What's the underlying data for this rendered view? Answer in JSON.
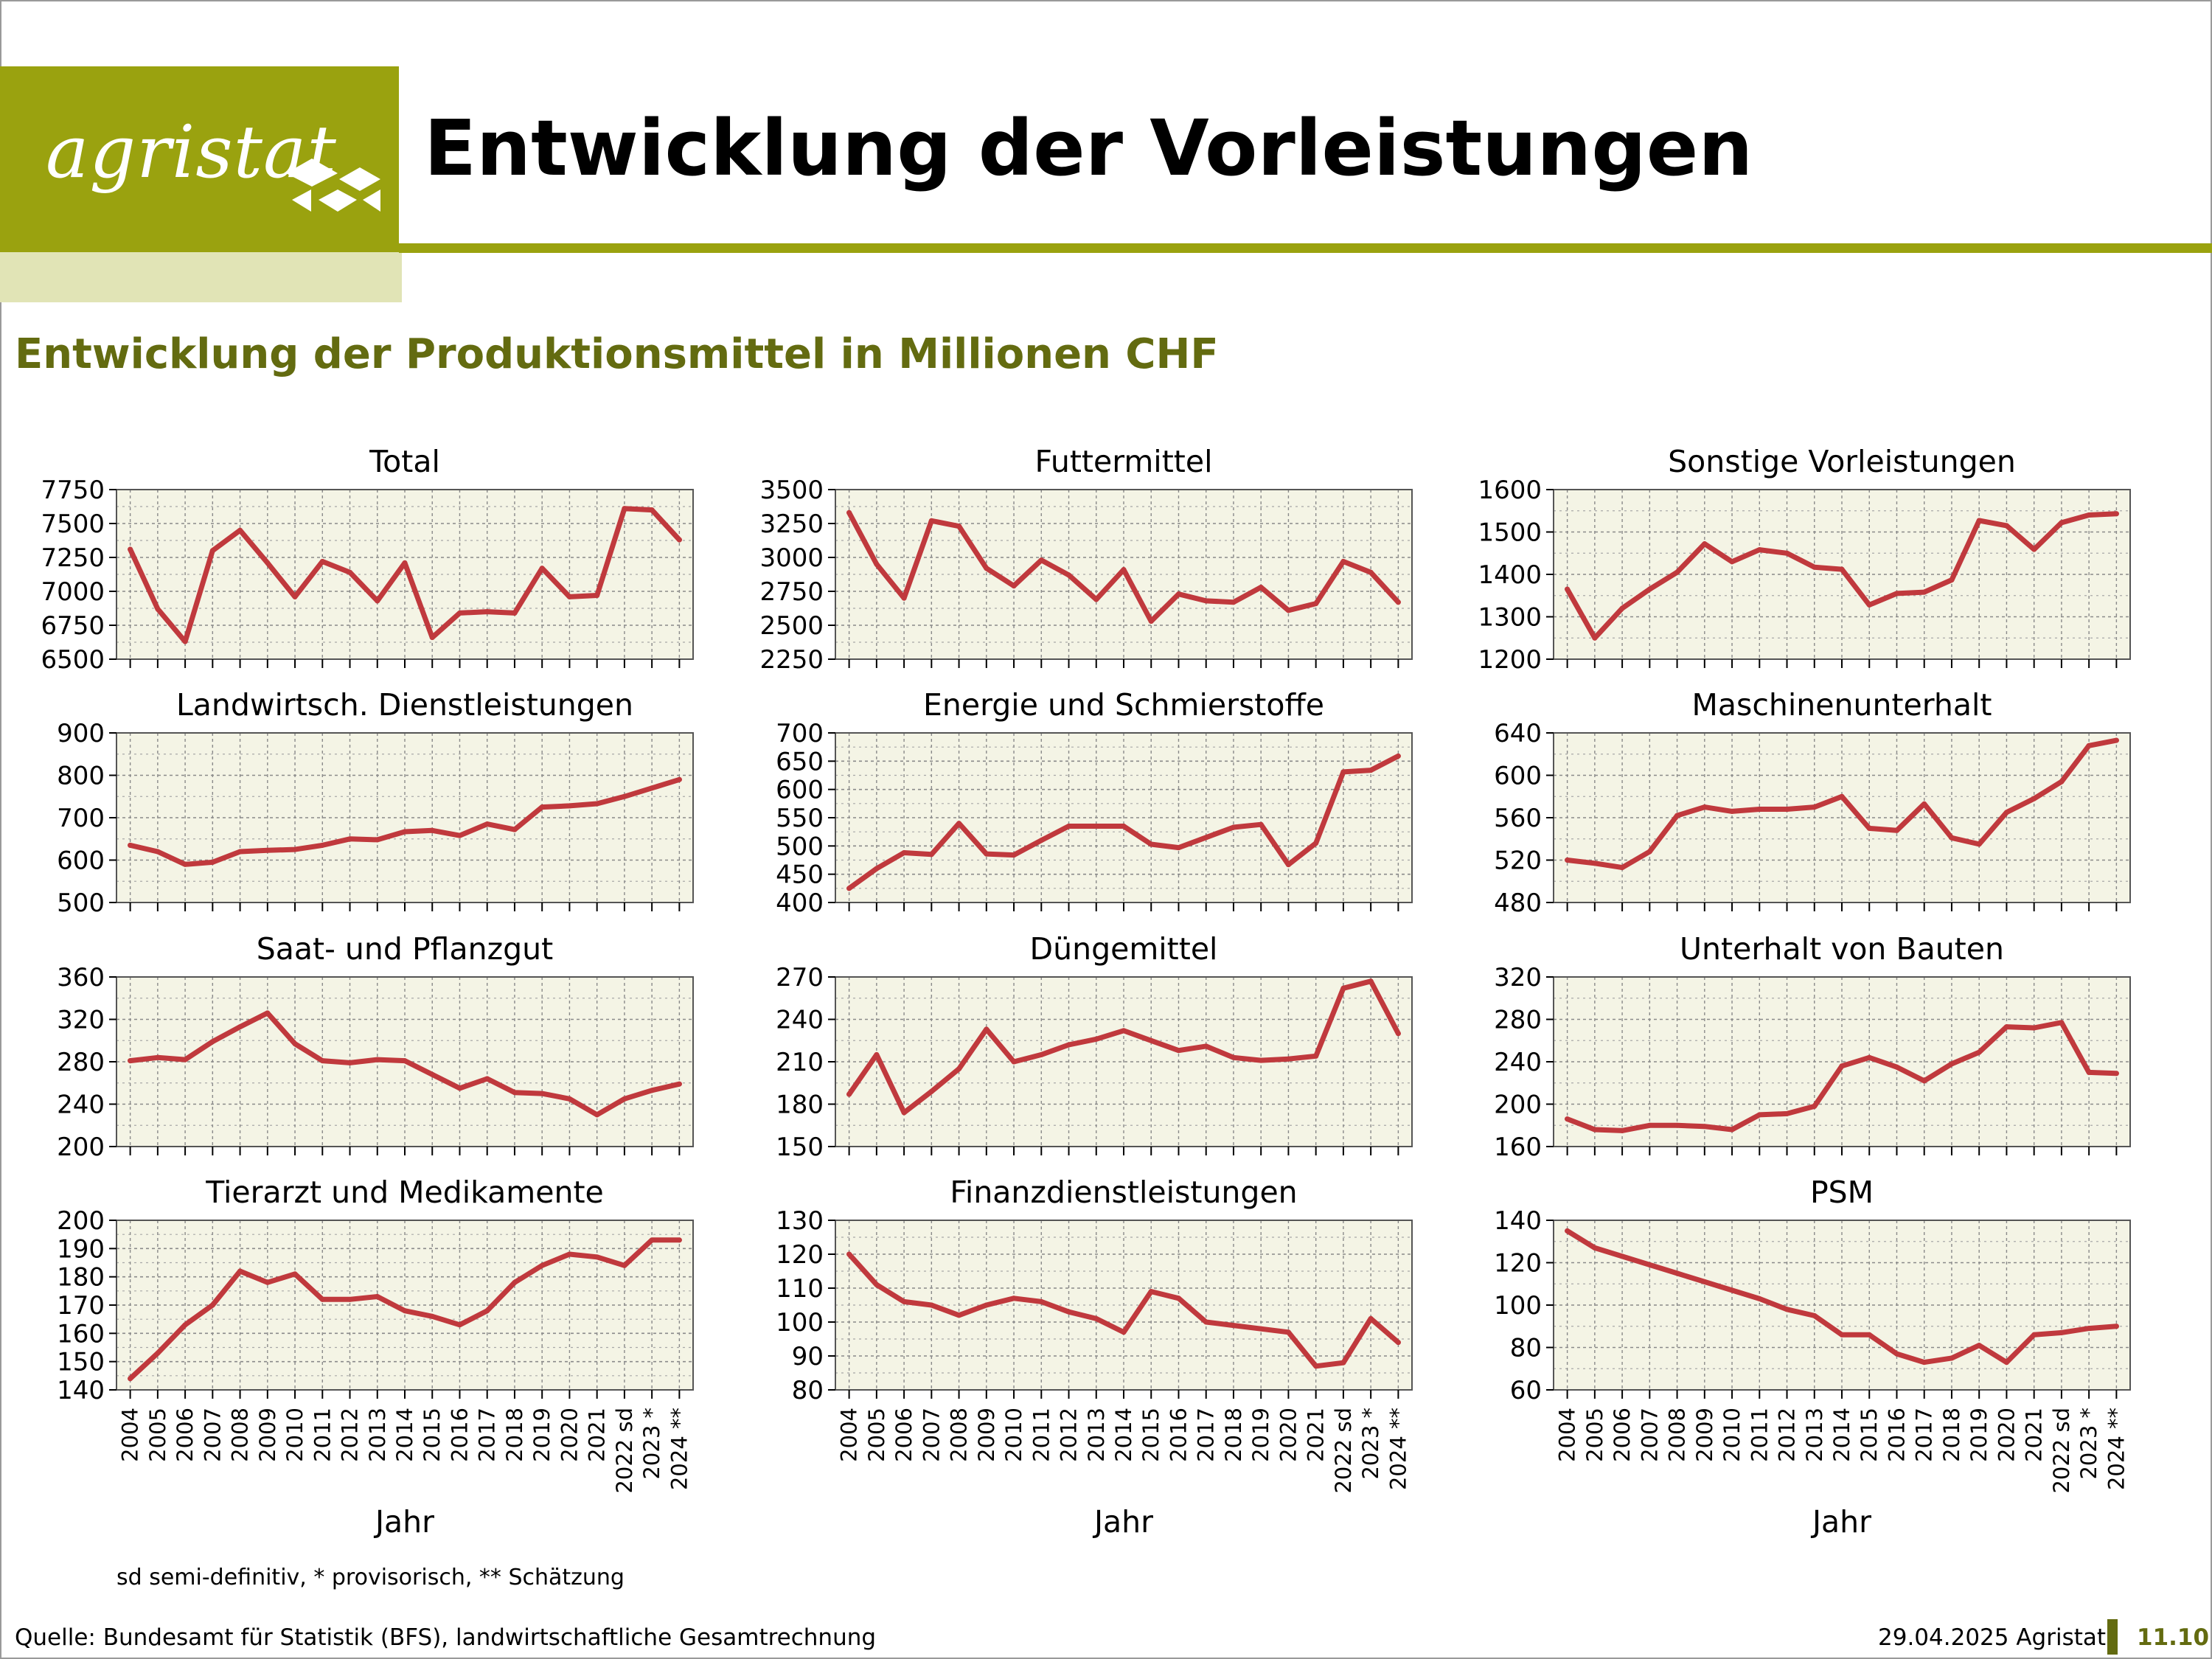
{
  "header": {
    "logo_text": "agristat",
    "title": "Entwicklung der Vorleistungen",
    "subtitle": "Entwicklung der Produktionsmittel in Millionen CHF"
  },
  "footer": {
    "note": "sd semi-definitiv, * provisorisch, ** Schätzung",
    "source": "Quelle: Bundesamt für Statistik (BFS), landwirtschaftliche Gesamtrechnung",
    "date": "29.04.2025 Agristat",
    "page": "11.10"
  },
  "colors": {
    "brand": "#9aa20f",
    "brand_dark": "#636b10",
    "brand_pale": "#e1e4b6",
    "plot_bg": "#f4f4e5",
    "line": "#c0393d"
  },
  "chart_data": [
    {
      "type": "line",
      "title": "Total",
      "ylim": [
        6500,
        7750
      ],
      "yticks": [
        6500,
        6750,
        7000,
        7250,
        7500,
        7750
      ],
      "values": [
        7310,
        6870,
        6630,
        7300,
        7450,
        7210,
        6960,
        7220,
        7140,
        6930,
        7210,
        6660,
        6840,
        6850,
        6840,
        7170,
        6960,
        6970,
        7610,
        7600,
        7380
      ]
    },
    {
      "type": "line",
      "title": "Futtermittel",
      "ylim": [
        2250,
        3500
      ],
      "yticks": [
        2250,
        2500,
        2750,
        3000,
        3250,
        3500
      ],
      "values": [
        3330,
        2950,
        2700,
        3270,
        3230,
        2920,
        2790,
        2980,
        2870,
        2690,
        2910,
        2530,
        2730,
        2680,
        2670,
        2780,
        2610,
        2660,
        2970,
        2890,
        2670
      ]
    },
    {
      "type": "line",
      "title": "Sonstige Vorleistungen",
      "ylim": [
        1200,
        1600
      ],
      "yticks": [
        1200,
        1300,
        1400,
        1500,
        1600
      ],
      "values": [
        1365,
        1250,
        1320,
        1365,
        1405,
        1472,
        1430,
        1458,
        1450,
        1417,
        1412,
        1328,
        1355,
        1358,
        1387,
        1527,
        1515,
        1459,
        1522,
        1540,
        1543
      ]
    },
    {
      "type": "line",
      "title": "Landwirtsch. Dienstleistungen",
      "ylim": [
        500,
        900
      ],
      "yticks": [
        500,
        600,
        700,
        800,
        900
      ],
      "values": [
        635,
        620,
        590,
        595,
        620,
        623,
        625,
        635,
        650,
        648,
        667,
        670,
        658,
        685,
        672,
        725,
        728,
        733,
        750,
        770,
        790
      ]
    },
    {
      "type": "line",
      "title": "Energie und Schmierstoffe",
      "ylim": [
        400,
        700
      ],
      "yticks": [
        400,
        450,
        500,
        550,
        600,
        650,
        700
      ],
      "values": [
        425,
        460,
        488,
        485,
        540,
        486,
        484,
        510,
        535,
        535,
        535,
        503,
        497,
        515,
        533,
        538,
        467,
        505,
        631,
        634,
        659
      ]
    },
    {
      "type": "line",
      "title": "Maschinenunterhalt",
      "ylim": [
        480,
        640
      ],
      "yticks": [
        480,
        520,
        560,
        600,
        640
      ],
      "values": [
        520,
        517,
        513,
        528,
        562,
        570,
        566,
        568,
        568,
        570,
        580,
        550,
        548,
        573,
        541,
        535,
        565,
        578,
        594,
        628,
        633
      ]
    },
    {
      "type": "line",
      "title": "Saat- und Pflanzgut",
      "ylim": [
        200,
        360
      ],
      "yticks": [
        200,
        240,
        280,
        320,
        360
      ],
      "values": [
        281,
        284,
        282,
        299,
        313,
        326,
        297,
        281,
        279,
        282,
        281,
        268,
        255,
        264,
        251,
        250,
        245,
        230,
        245,
        253,
        259
      ]
    },
    {
      "type": "line",
      "title": "Düngemittel",
      "ylim": [
        150,
        270
      ],
      "yticks": [
        150,
        180,
        210,
        240,
        270
      ],
      "values": [
        187,
        215,
        174,
        189,
        205,
        233,
        210,
        215,
        222,
        226,
        232,
        225,
        218,
        221,
        213,
        211,
        212,
        214,
        262,
        267,
        230
      ]
    },
    {
      "type": "line",
      "title": "Unterhalt von Bauten",
      "ylim": [
        160,
        320
      ],
      "yticks": [
        160,
        200,
        240,
        280,
        320
      ],
      "values": [
        186,
        176,
        175,
        180,
        180,
        179,
        176,
        190,
        191,
        198,
        236,
        244,
        235,
        222,
        238,
        249,
        273,
        272,
        277,
        230,
        229
      ]
    },
    {
      "type": "line",
      "title": "Tierarzt und Medikamente",
      "ylim": [
        140,
        200
      ],
      "yticks": [
        140,
        150,
        160,
        170,
        180,
        190,
        200
      ],
      "values": [
        144,
        153,
        163,
        170,
        182,
        178,
        181,
        172,
        172,
        173,
        168,
        166,
        163,
        168,
        178,
        184,
        188,
        187,
        184,
        193,
        193
      ]
    },
    {
      "type": "line",
      "title": "Finanzdienstleistungen",
      "ylim": [
        80,
        130
      ],
      "yticks": [
        80,
        90,
        100,
        110,
        120,
        130
      ],
      "values": [
        120,
        111,
        106,
        105,
        102,
        105,
        107,
        106,
        103,
        101,
        97,
        109,
        107,
        100,
        99,
        98,
        97,
        87,
        88,
        101,
        94
      ]
    },
    {
      "type": "line",
      "title": "PSM",
      "ylim": [
        60,
        140
      ],
      "yticks": [
        60,
        80,
        100,
        120,
        140
      ],
      "values": [
        135,
        127,
        123,
        119,
        115,
        111,
        107,
        103,
        98,
        95,
        86,
        86,
        77,
        73,
        75,
        81,
        73,
        86,
        87,
        89,
        90
      ]
    }
  ],
  "x_axis": {
    "label": "Jahr",
    "years": [
      "2004",
      "2005",
      "2006",
      "2007",
      "2008",
      "2009",
      "2010",
      "2011",
      "2012",
      "2013",
      "2014",
      "2015",
      "2016",
      "2017",
      "2018",
      "2019",
      "2020",
      "2021",
      "2022 sd",
      "2023 *",
      "2024 **"
    ]
  }
}
